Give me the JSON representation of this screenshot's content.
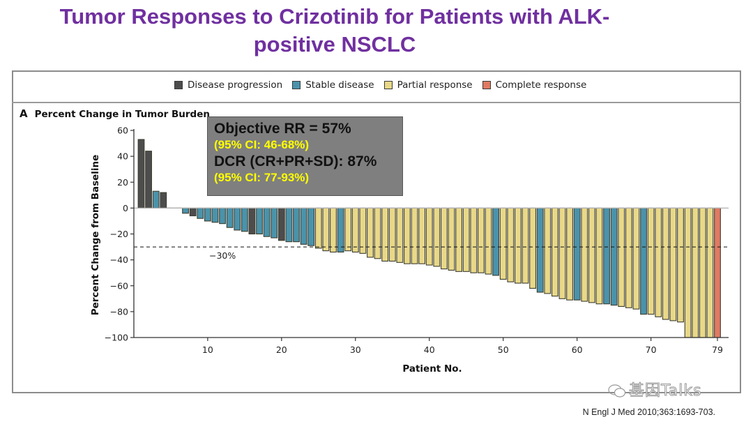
{
  "slide": {
    "title_line1": "Tumor Responses to Crizotinib for Patients with ALK-",
    "title_line2": "positive NSCLC",
    "citation": "N Engl J Med 2010;363:1693-703.",
    "watermark": "基因Talks"
  },
  "panel": {
    "letter": "A",
    "title": "Percent Change in Tumor Burden"
  },
  "stats_box": {
    "line1": "Objective RR = 57%",
    "line2": "(95% CI: 46-68%)",
    "line3": "DCR (CR+PR+SD): 87%",
    "line4": "(95% CI: 77-93%)"
  },
  "legend": [
    {
      "key": "PD",
      "label": "Disease progression",
      "color": "#4d4d4d"
    },
    {
      "key": "SD",
      "label": "Stable disease",
      "color": "#4a93ab"
    },
    {
      "key": "PR",
      "label": "Partial response",
      "color": "#e8d888"
    },
    {
      "key": "CR",
      "label": "Complete response",
      "color": "#e07a63"
    }
  ],
  "chart_data": {
    "type": "bar",
    "title": "Percent Change in Tumor Burden",
    "xlabel": "Patient No.",
    "ylabel": "Percent Change from Baseline",
    "ylim": [
      -100,
      60
    ],
    "xlim": [
      1,
      79
    ],
    "yticks": [
      60,
      40,
      20,
      0,
      -20,
      -40,
      -60,
      -80,
      -100
    ],
    "xticks": [
      10,
      20,
      30,
      40,
      50,
      60,
      70,
      79
    ],
    "reference_line": {
      "value": -30,
      "label": "−30%",
      "style": "dashed"
    },
    "grid": false,
    "legend_position": "top",
    "patients": [
      1,
      2,
      3,
      4,
      5,
      6,
      7,
      8,
      9,
      10,
      11,
      12,
      13,
      14,
      15,
      16,
      17,
      18,
      19,
      20,
      21,
      22,
      23,
      24,
      25,
      26,
      27,
      28,
      29,
      30,
      31,
      32,
      33,
      34,
      35,
      36,
      37,
      38,
      39,
      40,
      41,
      42,
      43,
      44,
      45,
      46,
      47,
      48,
      49,
      50,
      51,
      52,
      53,
      54,
      55,
      56,
      57,
      58,
      59,
      60,
      61,
      62,
      63,
      64,
      65,
      66,
      67,
      68,
      69,
      70,
      71,
      72,
      73,
      74,
      75,
      76,
      77,
      78,
      79
    ],
    "values": [
      53,
      44,
      13,
      12,
      0,
      0,
      -4,
      -6,
      -8,
      -10,
      -11,
      -12,
      -15,
      -17,
      -18,
      -20,
      -20,
      -22,
      -23,
      -25,
      -26,
      -26,
      -28,
      -29,
      -31,
      -33,
      -34,
      -34,
      -33,
      -34,
      -35,
      -38,
      -39,
      -41,
      -41,
      -42,
      -43,
      -43,
      -43,
      -44,
      -45,
      -47,
      -48,
      -49,
      -49,
      -50,
      -50,
      -51,
      -52,
      -55,
      -57,
      -58,
      -58,
      -62,
      -65,
      -66,
      -68,
      -70,
      -71,
      -71,
      -72,
      -73,
      -74,
      -74,
      -75,
      -76,
      -77,
      -78,
      -82,
      -82,
      -84,
      -86,
      -87,
      -88,
      -100,
      -100,
      -100,
      -100,
      -100
    ],
    "response": [
      "PD",
      "PD",
      "SD",
      "PD",
      "PD",
      "PD",
      "SD",
      "PD",
      "SD",
      "SD",
      "SD",
      "SD",
      "SD",
      "SD",
      "SD",
      "PD",
      "SD",
      "SD",
      "SD",
      "PD",
      "SD",
      "SD",
      "SD",
      "SD",
      "PR",
      "PR",
      "PR",
      "SD",
      "PR",
      "PR",
      "PR",
      "PR",
      "PR",
      "PR",
      "PR",
      "PR",
      "PR",
      "PR",
      "PR",
      "PR",
      "PR",
      "PR",
      "PR",
      "PR",
      "PR",
      "PR",
      "PR",
      "PR",
      "SD",
      "PR",
      "PR",
      "PR",
      "PR",
      "PR",
      "SD",
      "PR",
      "PR",
      "PR",
      "PR",
      "SD",
      "PR",
      "PR",
      "PR",
      "SD",
      "SD",
      "PR",
      "PR",
      "PR",
      "SD",
      "PR",
      "PR",
      "PR",
      "PR",
      "PR",
      "PR",
      "PR",
      "PR",
      "PR",
      "CR"
    ]
  }
}
